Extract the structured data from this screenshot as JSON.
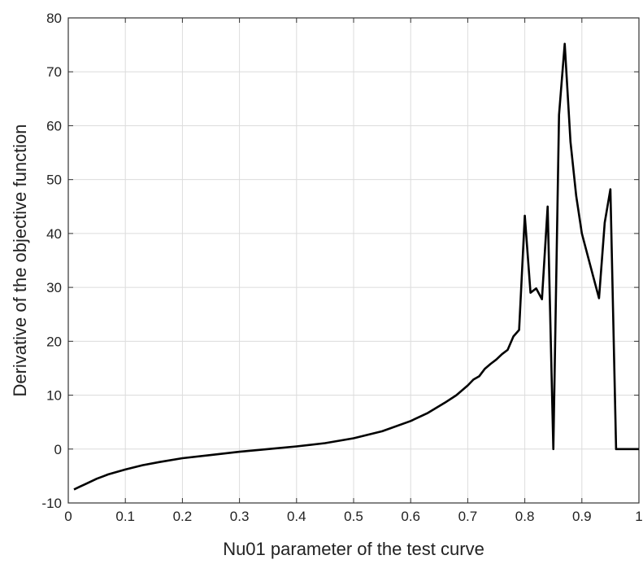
{
  "chart_data": {
    "type": "line",
    "title": "",
    "xlabel": "Nu01 parameter of the test curve",
    "ylabel": "Derivative of the objective function",
    "xlim": [
      0,
      1
    ],
    "ylim": [
      -10,
      80
    ],
    "grid": true,
    "x_ticks": [
      0,
      0.1,
      0.2,
      0.3,
      0.4,
      0.5,
      0.6,
      0.7,
      0.8,
      0.9,
      1
    ],
    "x_tick_labels": [
      "0",
      "0.1",
      "0.2",
      "0.3",
      "0.4",
      "0.5",
      "0.6",
      "0.7",
      "0.8",
      "0.9",
      "1"
    ],
    "y_ticks": [
      -10,
      0,
      10,
      20,
      30,
      40,
      50,
      60,
      70,
      80
    ],
    "y_tick_labels": [
      "-10",
      "0",
      "10",
      "20",
      "30",
      "40",
      "50",
      "60",
      "70",
      "80"
    ],
    "line_color": "#000000",
    "series": [
      {
        "x": [
          0.01,
          0.02,
          0.03,
          0.05,
          0.07,
          0.1,
          0.13,
          0.16,
          0.2,
          0.25,
          0.3,
          0.35,
          0.4,
          0.45,
          0.5,
          0.55,
          0.6,
          0.63,
          0.66,
          0.68,
          0.7,
          0.71,
          0.72,
          0.73,
          0.74,
          0.75,
          0.76,
          0.77,
          0.78,
          0.79,
          0.8,
          0.81,
          0.82,
          0.83,
          0.84,
          0.85,
          0.86,
          0.87,
          0.88,
          0.89,
          0.9,
          0.91,
          0.92,
          0.93,
          0.94,
          0.95,
          0.96,
          0.97,
          0.98,
          0.99,
          1.0
        ],
        "y": [
          -7.5,
          -7.0,
          -6.5,
          -5.5,
          -4.7,
          -3.8,
          -3.0,
          -2.4,
          -1.7,
          -1.1,
          -0.5,
          0.0,
          0.5,
          1.1,
          2.0,
          3.3,
          5.2,
          6.7,
          8.6,
          10.0,
          11.8,
          12.9,
          13.5,
          14.9,
          15.8,
          16.6,
          17.6,
          18.4,
          20.9,
          22.1,
          43.3,
          29.0,
          29.8,
          27.8,
          45.0,
          0.0,
          62.0,
          75.2,
          57.0,
          47.0,
          40.0,
          36.0,
          32.0,
          28.0,
          42.0,
          48.2,
          0.0,
          0.0,
          0.0,
          0.0,
          0.0
        ]
      }
    ]
  }
}
